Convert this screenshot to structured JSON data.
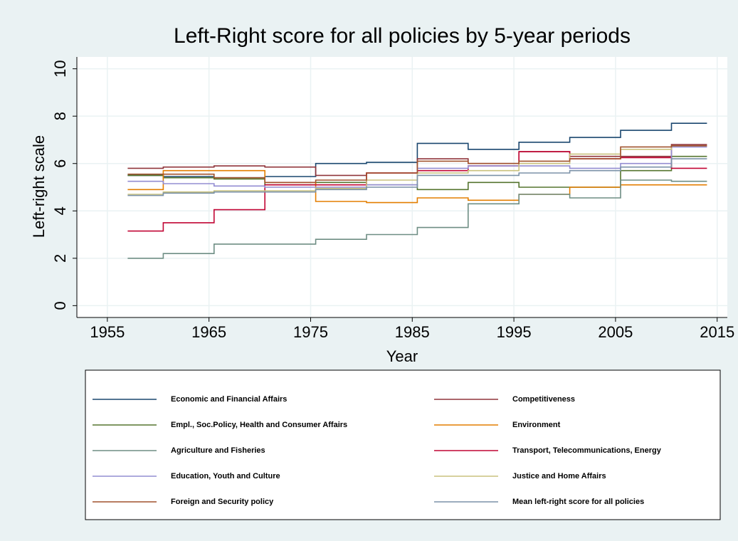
{
  "chart_data": {
    "type": "line",
    "title": "Left-Right score for all policies by 5-year periods",
    "xlabel": "Year",
    "ylabel": "Left-right scale",
    "xlim": [
      1952,
      2016
    ],
    "ylim": [
      -0.5,
      10.5
    ],
    "xticks": [
      1955,
      1965,
      1975,
      1985,
      1995,
      2005,
      2015
    ],
    "yticks": [
      0,
      2,
      4,
      6,
      8,
      10
    ],
    "grid": true,
    "x": [
      1957,
      1960.5,
      1960.5,
      1965.5,
      1965.5,
      1970.5,
      1970.5,
      1975.5,
      1975.5,
      1980.5,
      1980.5,
      1985.5,
      1985.5,
      1990.5,
      1990.5,
      1995.5,
      1995.5,
      2000.5,
      2000.5,
      2005.5,
      2005.5,
      2010.5,
      2010.5,
      2014
    ],
    "series": [
      {
        "name": "Economic and Financial Affairs",
        "color": "#1a476f",
        "values": [
          5.5,
          5.5,
          5.45,
          5.45,
          5.4,
          5.4,
          5.45,
          5.45,
          6.0,
          6.0,
          6.05,
          6.05,
          6.85,
          6.85,
          6.6,
          6.6,
          6.9,
          6.9,
          7.1,
          7.1,
          7.4,
          7.4,
          7.7,
          7.7
        ]
      },
      {
        "name": "Competitiveness",
        "color": "#90353b",
        "values": [
          5.8,
          5.8,
          5.85,
          5.85,
          5.9,
          5.9,
          5.85,
          5.85,
          5.5,
          5.5,
          5.6,
          5.6,
          6.2,
          6.2,
          6.0,
          6.0,
          6.5,
          6.5,
          6.3,
          6.3,
          6.3,
          6.3,
          6.8,
          6.8
        ]
      },
      {
        "name": "Empl., Soc.Policy, Health and Consumer Affairs",
        "color": "#55752f",
        "values": [
          5.5,
          5.5,
          5.4,
          5.4,
          5.35,
          5.35,
          5.1,
          5.1,
          5.2,
          5.2,
          5.1,
          5.1,
          4.9,
          4.9,
          5.2,
          5.2,
          5.0,
          5.0,
          5.0,
          5.0,
          5.7,
          5.7,
          6.3,
          6.3
        ]
      },
      {
        "name": "Environment",
        "color": "#e37e00",
        "values": [
          4.9,
          4.9,
          5.7,
          5.7,
          5.7,
          5.7,
          5.2,
          5.2,
          4.4,
          4.4,
          4.35,
          4.35,
          4.55,
          4.55,
          4.45,
          4.45,
          4.7,
          4.7,
          5.0,
          5.0,
          5.1,
          5.1,
          5.1,
          5.1
        ]
      },
      {
        "name": "Agriculture and Fisheries",
        "color": "#6e8e84",
        "values": [
          2.0,
          2.0,
          2.2,
          2.2,
          2.6,
          2.6,
          2.6,
          2.6,
          2.8,
          2.8,
          3.0,
          3.0,
          3.3,
          3.3,
          4.3,
          4.3,
          4.7,
          4.7,
          4.55,
          4.55,
          5.3,
          5.3,
          5.25,
          5.25
        ]
      },
      {
        "name": "Transport, Telecommunications, Energy",
        "color": "#c10534",
        "values": [
          3.15,
          3.15,
          3.5,
          3.5,
          4.05,
          4.05,
          5.1,
          5.1,
          5.1,
          5.1,
          5.6,
          5.6,
          5.7,
          5.7,
          5.9,
          5.9,
          6.5,
          6.5,
          6.2,
          6.2,
          6.25,
          6.25,
          5.8,
          5.8
        ]
      },
      {
        "name": "Education, Youth and Culture",
        "color": "#938dd2",
        "values": [
          5.25,
          5.25,
          5.15,
          5.15,
          5.05,
          5.05,
          5.0,
          5.0,
          5.0,
          5.0,
          5.1,
          5.1,
          5.8,
          5.8,
          5.9,
          5.9,
          5.9,
          5.9,
          5.8,
          5.8,
          6.0,
          6.0,
          6.7,
          6.7
        ]
      },
      {
        "name": "Justice and Home Affairs",
        "color": "#cac27e",
        "values": [
          4.7,
          4.7,
          4.8,
          4.8,
          4.85,
          4.85,
          4.85,
          4.85,
          4.95,
          4.95,
          5.3,
          5.3,
          5.6,
          5.6,
          5.7,
          5.7,
          6.0,
          6.0,
          6.4,
          6.4,
          6.6,
          6.6,
          6.75,
          6.75
        ]
      },
      {
        "name": "Foreign and Security policy",
        "color": "#a0522d",
        "values": [
          5.55,
          5.55,
          5.55,
          5.55,
          5.4,
          5.4,
          5.2,
          5.2,
          5.3,
          5.3,
          5.6,
          5.6,
          6.1,
          6.1,
          6.0,
          6.0,
          6.1,
          6.1,
          6.2,
          6.2,
          6.7,
          6.7,
          6.75,
          6.75
        ]
      },
      {
        "name": "Mean left-right score for all policies",
        "color": "#7b92a8",
        "values": [
          4.65,
          4.65,
          4.75,
          4.75,
          4.8,
          4.8,
          4.8,
          4.8,
          4.9,
          4.9,
          5.0,
          5.0,
          5.5,
          5.5,
          5.5,
          5.5,
          5.6,
          5.6,
          5.7,
          5.7,
          5.85,
          5.85,
          6.2,
          6.2
        ]
      }
    ]
  }
}
